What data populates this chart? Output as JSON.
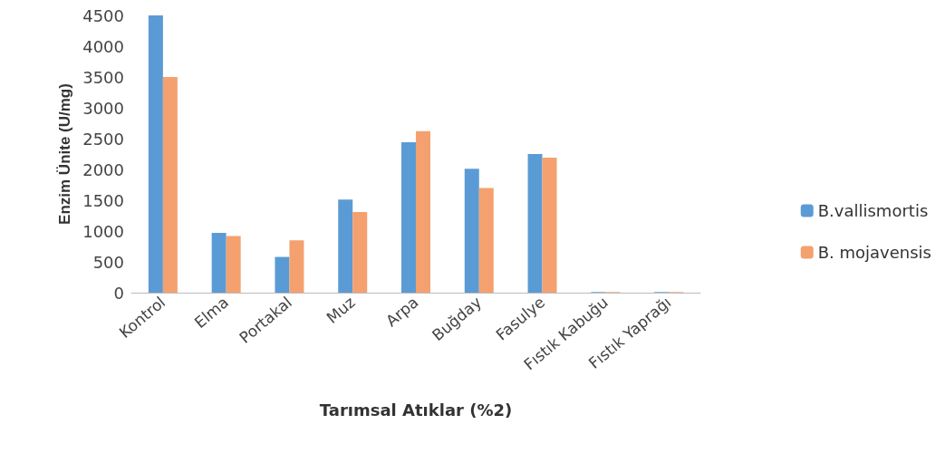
{
  "chart_data": {
    "type": "bar",
    "xlabel": "Tarımsal Atıklar (%2)",
    "ylabel": "Enzim Ünite (U/mg)",
    "categories": [
      "Kontrol",
      "Elma",
      "Portakal",
      "Muz",
      "Arpa",
      "Buğday",
      "Fasulye",
      "Fıstık Kabuğu",
      "Fıstık Yaprağı"
    ],
    "series": [
      {
        "name": "B.vallismortis",
        "color": "#5b9bd5",
        "values": [
          4500,
          970,
          580,
          1510,
          2440,
          2010,
          2250,
          10,
          10
        ]
      },
      {
        "name": "B. mojavensis",
        "color": "#f4a16f",
        "values": [
          3500,
          920,
          850,
          1310,
          2620,
          1700,
          2190,
          10,
          10
        ]
      }
    ],
    "ylim": [
      0,
      4500
    ],
    "yticks": [
      0,
      500,
      1000,
      1500,
      2000,
      2500,
      3000,
      3500,
      4000,
      4500
    ],
    "grid": false,
    "legend": "right"
  }
}
